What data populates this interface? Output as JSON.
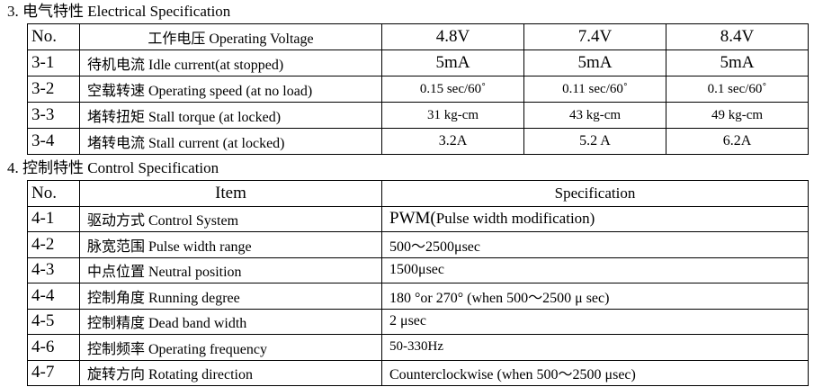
{
  "section3": {
    "heading": "3.  电气特性 Electrical Specification",
    "header": {
      "no": "No.",
      "item": "工作电压 Operating Voltage",
      "v1": "4.8V",
      "v2": "7.4V",
      "v3": "8.4V"
    },
    "rows": [
      {
        "no": "3-1",
        "item": "待机电流  Idle current(at stopped)",
        "v1": "5mA",
        "v2": "5mA",
        "v3": "5mA"
      },
      {
        "no": "3-2",
        "item": "空载转速 Operating speed (at no load)",
        "v1": "0.15 sec/60˚",
        "v2": "0.11 sec/60˚",
        "v3": "0.1 sec/60˚"
      },
      {
        "no": "3-3",
        "item": "堵转扭矩 Stall torque (at locked)",
        "v1": "31 kg-cm",
        "v2": "43 kg-cm",
        "v3": "49 kg-cm"
      },
      {
        "no": "3-4",
        "item": "堵转电流 Stall current (at locked)",
        "v1": "3.2A",
        "v2": "5.2 A",
        "v3": "6.2A"
      }
    ]
  },
  "section4": {
    "heading": "4.  控制特性 Control Specification",
    "header": {
      "no": "No.",
      "item": "Item",
      "spec": "Specification"
    },
    "rows": [
      {
        "no": "4-1",
        "item": "驱动方式 Control System",
        "spec_main": "PWM(",
        "spec_rest": "Pulse width modification)"
      },
      {
        "no": "4-2",
        "item": "脉宽范围  Pulse width range",
        "spec": "500～2500μsec"
      },
      {
        "no": "4-3",
        "item": "中点位置  Neutral position",
        "spec": "1500μsec"
      },
      {
        "no": "4-4",
        "item": "控制角度  Running degree",
        "spec": "180 °or 270°   (when 500～2500 μ sec)"
      },
      {
        "no": "4-5",
        "item": "控制精度  Dead band width",
        "spec": "2  μsec"
      },
      {
        "no": "4-6",
        "item": "控制频率 Operating    frequency",
        "spec": "50-330Hz"
      },
      {
        "no": "4-7",
        "item": "旋转方向  Rotating direction",
        "spec": "Counterclockwise (when 500～2500  μsec)"
      }
    ]
  }
}
